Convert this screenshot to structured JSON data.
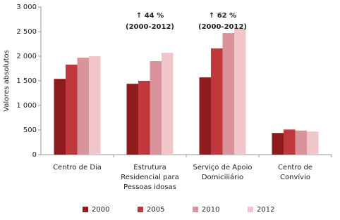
{
  "chart_data": {
    "type": "bar",
    "y_label": "Valores absolutos",
    "categories": [
      [
        "Centro de Dia"
      ],
      [
        "Estrutura",
        "Residencial para",
        "Pessoas idosas"
      ],
      [
        "Serviço de Apoio",
        "Domiciliário"
      ],
      [
        "Centro de",
        "Convívio"
      ]
    ],
    "series": [
      {
        "name": "2000",
        "color": "#8e1c1f",
        "values": [
          1540,
          1440,
          1570,
          440
        ]
      },
      {
        "name": "2005",
        "color": "#c1383c",
        "values": [
          1830,
          1500,
          2160,
          510
        ]
      },
      {
        "name": "2010",
        "color": "#d8949a",
        "values": [
          1970,
          1900,
          2470,
          490
        ]
      },
      {
        "name": "2012",
        "color": "#f1c6ca",
        "values": [
          2000,
          2070,
          2560,
          470
        ]
      }
    ],
    "ylim": [
      0,
      3000
    ],
    "yticks": [
      0,
      500,
      {
        "value": 1000,
        "label": "1 000"
      },
      {
        "value": 1500,
        "label": "1 500"
      },
      {
        "value": 2000,
        "label": "2 000"
      },
      {
        "value": 2500,
        "label": "2 500"
      },
      {
        "value": 3000,
        "label": "3 000"
      }
    ],
    "annotations": [
      [
        "↑ 44 %",
        "(2000-2012)"
      ],
      [
        "↑ 62 %",
        "(2000-2012)"
      ]
    ],
    "legend": "bottom"
  }
}
